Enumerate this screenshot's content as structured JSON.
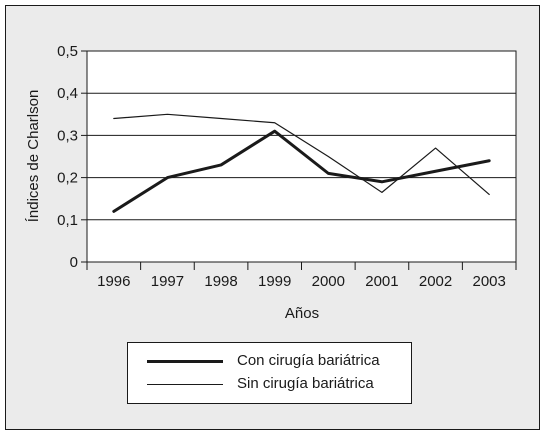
{
  "chart_data": {
    "type": "line",
    "x": [
      "1996",
      "1997",
      "1998",
      "1999",
      "2000",
      "2001",
      "2002",
      "2003"
    ],
    "xlabel": "Años",
    "ylabel": "Índices de Charlson",
    "ylim": [
      0,
      0.5
    ],
    "yticks": [
      0,
      0.1,
      0.2,
      0.3,
      0.4,
      0.5
    ],
    "ytick_labels": [
      "0",
      "0,1",
      "0,2",
      "0,3",
      "0,4",
      "0,5"
    ],
    "grid": "horizontal",
    "legend_position": "bottom",
    "series": [
      {
        "name": "Con cirugía bariátrica",
        "style": "thick",
        "color": "#1a1a1a",
        "values": [
          0.12,
          0.2,
          0.23,
          0.31,
          0.21,
          0.19,
          0.215,
          0.24
        ]
      },
      {
        "name": "Sin cirugía bariátrica",
        "style": "thin",
        "color": "#1a1a1a",
        "values": [
          0.34,
          0.35,
          0.34,
          0.33,
          0.25,
          0.165,
          0.27,
          0.16
        ]
      }
    ]
  }
}
